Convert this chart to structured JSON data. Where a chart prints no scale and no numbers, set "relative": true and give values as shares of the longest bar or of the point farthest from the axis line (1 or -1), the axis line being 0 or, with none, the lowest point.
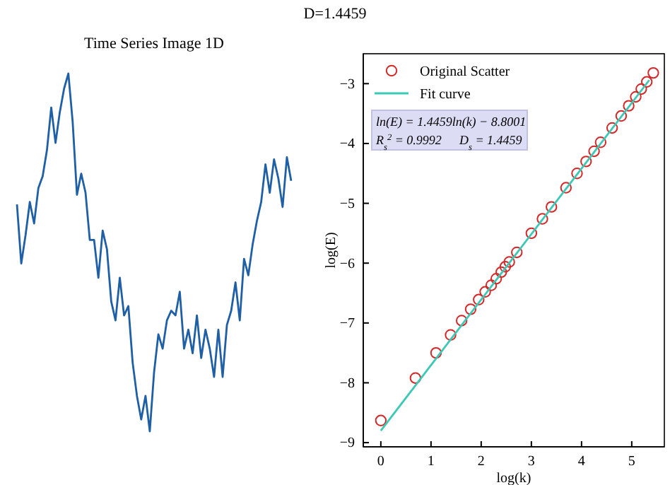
{
  "chart_data": [
    {
      "type": "line",
      "title": "Time Series Image 1D",
      "annotations": [
        "D=1.4459"
      ],
      "relative": true,
      "categories": [
        null,
        null,
        null,
        null,
        null,
        null,
        null,
        null,
        null,
        null,
        null,
        null,
        null,
        null,
        null,
        null,
        null,
        null,
        null,
        null,
        null,
        null,
        null,
        null,
        null,
        null,
        null,
        null,
        null,
        null,
        null,
        null,
        null,
        null,
        null,
        null,
        null,
        null,
        null,
        null,
        null,
        null,
        null,
        null,
        null,
        null,
        null,
        null,
        null,
        null,
        null,
        null,
        null,
        null,
        null,
        null,
        null,
        null,
        null,
        null,
        null,
        null,
        null,
        null,
        null
      ],
      "series": [
        {
          "color": "#1f5fa6",
          "values": [
            0.634,
            0.469,
            0.548,
            0.641,
            0.581,
            0.68,
            0.713,
            0.786,
            0.905,
            0.806,
            0.892,
            0.958,
            1,
            0.865,
            0.661,
            0.72,
            0.667,
            0.535,
            0.535,
            0.429,
            0.561,
            0.509,
            0.363,
            0.31,
            0.429,
            0.324,
            0.35,
            0.192,
            0.099,
            0.033,
            0.099,
            0,
            0.165,
            0.271,
            0.231,
            0.31,
            0.337,
            0.324,
            0.39,
            0.231,
            0.284,
            0.218,
            0.324,
            0.205,
            0.284,
            0.231,
            0.152,
            0.284,
            0.152,
            0.297,
            0.337,
            0.416,
            0.31,
            0.482,
            0.436,
            0.522,
            0.588,
            0.641,
            0.746,
            0.667,
            0.76,
            0.707,
            0.627,
            0.766,
            0.7
          ]
        }
      ]
    },
    {
      "type": "scatter",
      "xlabel": "log(k)",
      "ylabel": "log(E)",
      "annotations": [
        "ln(E) = 1.4459ln(k) − 8.8001",
        "R$_{s}$$^{2}$ = 0.9992",
        "D$_{s}$ = 1.4459"
      ],
      "xlim": [
        -0.35,
        5.65
      ],
      "ylim": [
        -9.07,
        -2.5
      ],
      "xticks": [
        0,
        1,
        2,
        3,
        4,
        5
      ],
      "yticks": [
        -9,
        -8,
        -7,
        -6,
        -5,
        -4,
        -3
      ],
      "legend": "top left",
      "grid": false,
      "series": [
        {
          "name": "Original Scatter",
          "color": "#d62728",
          "marker": "circle",
          "x": [
            0,
            0.69,
            1.1,
            1.39,
            1.61,
            1.79,
            1.95,
            2.08,
            2.2,
            2.3,
            2.4,
            2.48,
            2.56,
            2.71,
            3.0,
            3.22,
            3.4,
            3.69,
            3.91,
            4.09,
            4.25,
            4.38,
            4.61,
            4.79,
            4.94,
            5.08,
            5.19,
            5.3,
            5.43
          ],
          "values": [
            -8.63,
            -7.92,
            -7.5,
            -7.2,
            -6.96,
            -6.77,
            -6.61,
            -6.48,
            -6.37,
            -6.26,
            -6.15,
            -6.06,
            -5.98,
            -5.82,
            -5.5,
            -5.26,
            -5.06,
            -4.74,
            -4.5,
            -4.3,
            -4.13,
            -3.98,
            -3.74,
            -3.54,
            -3.37,
            -3.22,
            -3.09,
            -2.97,
            -2.82
          ]
        },
        {
          "type": "line",
          "name": "Fit curve",
          "color": "#3cc8b4",
          "line_style": "solid",
          "x": [
            0,
            5.35
          ],
          "values": [
            -8.8,
            -2.94
          ]
        }
      ]
    }
  ]
}
